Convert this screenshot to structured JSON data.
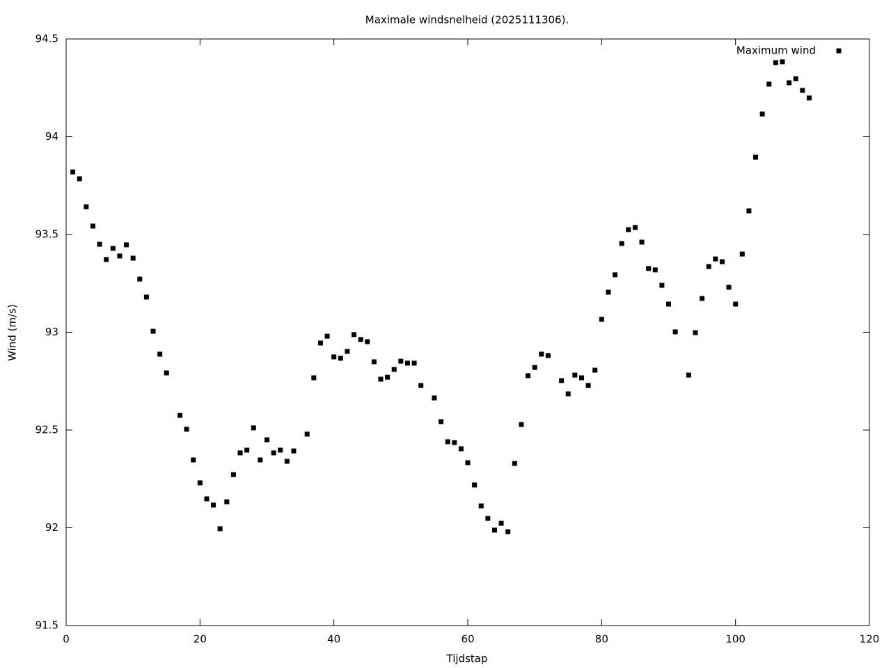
{
  "chart_data": {
    "type": "scatter",
    "title": "Maximale windsnelheid (2025111306).",
    "x_label": "Tijdstap",
    "y_label": "Wind (m/s)",
    "x": [
      1,
      2,
      3,
      4,
      5,
      6,
      7,
      8,
      9,
      10,
      11,
      12,
      13,
      14,
      15,
      17,
      18,
      19,
      20,
      21,
      22,
      23,
      24,
      25,
      26,
      27,
      28,
      29,
      30,
      31,
      32,
      33,
      34,
      36,
      37,
      38,
      39,
      40,
      41,
      42,
      43,
      44,
      45,
      46,
      47,
      48,
      49,
      50,
      51,
      52,
      53,
      55,
      56,
      57,
      58,
      59,
      60,
      61,
      62,
      63,
      64,
      65,
      66,
      67,
      68,
      69,
      70,
      71,
      72,
      74,
      75,
      76,
      77,
      78,
      79,
      80,
      81,
      82,
      83,
      84,
      85,
      86,
      87,
      88,
      89,
      90,
      91,
      93,
      94,
      95,
      96,
      97,
      98,
      99,
      100,
      101,
      102,
      103,
      104,
      105,
      106,
      107,
      108,
      109,
      110,
      111
    ],
    "series": [
      {
        "name": "Maximum wind",
        "color": "#000000",
        "values": [
          93.82,
          93.785,
          93.642,
          93.543,
          93.45,
          93.372,
          93.429,
          93.39,
          93.447,
          93.379,
          93.272,
          93.18,
          93.005,
          92.888,
          92.792,
          92.575,
          92.504,
          92.347,
          92.23,
          92.148,
          92.116,
          91.995,
          92.133,
          92.272,
          92.383,
          92.397,
          92.511,
          92.347,
          92.45,
          92.383,
          92.397,
          92.34,
          92.393,
          92.479,
          92.767,
          92.945,
          92.98,
          92.874,
          92.867,
          92.902,
          92.988,
          92.963,
          92.952,
          92.849,
          92.76,
          92.77,
          92.81,
          92.852,
          92.842,
          92.842,
          92.728,
          92.664,
          92.543,
          92.44,
          92.436,
          92.404,
          92.333,
          92.219,
          92.112,
          92.048,
          91.988,
          92.023,
          91.98,
          92.329,
          92.528,
          92.778,
          92.82,
          92.888,
          92.881,
          92.753,
          92.685,
          92.781,
          92.767,
          92.728,
          92.806,
          93.066,
          93.205,
          93.294,
          93.454,
          93.525,
          93.536,
          93.461,
          93.326,
          93.319,
          93.24,
          93.144,
          93.002,
          92.781,
          92.998,
          93.173,
          93.336,
          93.375,
          93.361,
          93.23,
          93.144,
          93.4,
          93.621,
          93.895,
          94.116,
          94.269,
          94.379,
          94.383,
          94.276,
          94.297,
          94.237,
          94.198
        ]
      }
    ],
    "xlim": [
      0,
      120
    ],
    "xticks": [
      0,
      20,
      40,
      60,
      80,
      100,
      120
    ],
    "ylim": [
      91.5,
      94.5
    ],
    "yticks": [
      91.5,
      92,
      92.5,
      93,
      93.5,
      94,
      94.5
    ],
    "legend": "top right",
    "grid": false
  }
}
